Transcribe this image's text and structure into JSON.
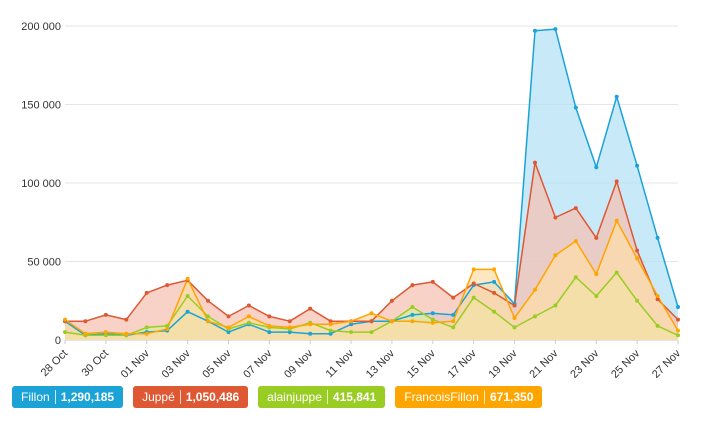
{
  "chart_data": {
    "type": "area",
    "x": [
      "28 Oct",
      "29 Oct",
      "30 Oct",
      "31 Oct",
      "01 Nov",
      "02 Nov",
      "03 Nov",
      "04 Nov",
      "05 Nov",
      "06 Nov",
      "07 Nov",
      "08 Nov",
      "09 Nov",
      "10 Nov",
      "11 Nov",
      "12 Nov",
      "13 Nov",
      "14 Nov",
      "15 Nov",
      "16 Nov",
      "17 Nov",
      "18 Nov",
      "19 Nov",
      "20 Nov",
      "21 Nov",
      "22 Nov",
      "23 Nov",
      "24 Nov",
      "25 Nov",
      "26 Nov",
      "27 Nov"
    ],
    "x_tick_labels": [
      "28 Oct",
      "30 Oct",
      "01 Nov",
      "03 Nov",
      "05 Nov",
      "07 Nov",
      "09 Nov",
      "11 Nov",
      "13 Nov",
      "15 Nov",
      "17 Nov",
      "19 Nov",
      "21 Nov",
      "23 Nov",
      "25 Nov",
      "27 Nov"
    ],
    "y_ticks": [
      "0",
      "50 000",
      "100 000",
      "150 000",
      "200 000"
    ],
    "ylim": [
      0,
      200000
    ],
    "grid": true,
    "legend_position": "bottom-left",
    "series": [
      {
        "name": "Fillon",
        "total": "1,290,185",
        "color": "#1ba3d8",
        "fill": "#b3e0f5",
        "values": [
          12000,
          3000,
          4000,
          3000,
          5000,
          6000,
          18000,
          12000,
          5000,
          10000,
          5000,
          5000,
          4000,
          4000,
          10000,
          12000,
          12000,
          16000,
          17000,
          16000,
          35000,
          37000,
          23000,
          197000,
          198000,
          148000,
          110000,
          155000,
          111000,
          65000,
          21000
        ]
      },
      {
        "name": "Juppé",
        "total": "1,050,486",
        "color": "#dd5833",
        "fill": "#f5c0b1",
        "values": [
          12000,
          12000,
          16000,
          13000,
          30000,
          35000,
          38000,
          25000,
          15000,
          22000,
          15000,
          12000,
          20000,
          12000,
          12000,
          12000,
          25000,
          35000,
          37000,
          27000,
          36000,
          30000,
          22000,
          113000,
          78000,
          84000,
          65000,
          101000,
          57000,
          26000,
          13000
        ]
      },
      {
        "name": "alainjuppe",
        "total": "415,841",
        "color": "#9acd23",
        "fill": "#d9ed9f",
        "values": [
          5000,
          3000,
          3000,
          3000,
          8000,
          9000,
          28000,
          15000,
          7000,
          11000,
          8000,
          7000,
          11000,
          6000,
          5000,
          5000,
          12000,
          21000,
          13000,
          8000,
          27000,
          18000,
          8000,
          15000,
          22000,
          40000,
          28000,
          43000,
          25000,
          9000,
          3000
        ]
      },
      {
        "name": "FrancoisFillon",
        "total": "671,350",
        "color": "#ffa500",
        "fill": "#fedda8",
        "values": [
          13000,
          4000,
          5000,
          4000,
          4000,
          7000,
          39000,
          12000,
          8000,
          15000,
          9000,
          8000,
          10000,
          10000,
          12000,
          17000,
          12000,
          12000,
          11000,
          12000,
          45000,
          45000,
          14000,
          32000,
          54000,
          63000,
          42000,
          76000,
          52000,
          28000,
          6000
        ]
      }
    ]
  }
}
